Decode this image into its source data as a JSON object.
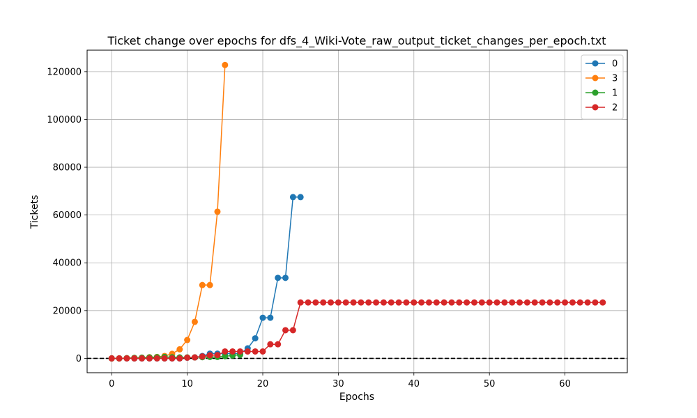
{
  "chart_data": {
    "type": "line",
    "title": "Ticket change over epochs for dfs_4_Wiki-Vote_raw_output_ticket_changes_per_epoch.txt",
    "xlabel": "Epochs",
    "ylabel": "Tickets",
    "xlim": [
      -3.25,
      68.25
    ],
    "ylim": [
      -6000,
      129000
    ],
    "x_ticks": [
      0,
      10,
      20,
      30,
      40,
      50,
      60
    ],
    "y_ticks": [
      0,
      20000,
      40000,
      60000,
      80000,
      100000,
      120000
    ],
    "grid": true,
    "zero_line": true,
    "legend_position": "top-right",
    "series": [
      {
        "name": "0",
        "color": "#1f77b4",
        "x": [
          0,
          1,
          2,
          3,
          4,
          5,
          6,
          7,
          8,
          9,
          10,
          11,
          12,
          13,
          14,
          15,
          16,
          17,
          18,
          19,
          20,
          21,
          22,
          23,
          24,
          25
        ],
        "y": [
          0,
          0,
          0,
          0,
          0,
          0,
          0,
          0,
          0,
          0,
          300,
          400,
          1000,
          2000,
          2000,
          2000,
          2000,
          2000,
          4200,
          8400,
          17000,
          17000,
          33700,
          33700,
          67500,
          67500
        ]
      },
      {
        "name": "3",
        "color": "#ff7f0e",
        "x": [
          0,
          1,
          2,
          3,
          4,
          5,
          6,
          7,
          8,
          9,
          10,
          11,
          12,
          13,
          14,
          15
        ],
        "y": [
          0,
          0,
          100,
          200,
          300,
          500,
          600,
          1000,
          1900,
          3800,
          7700,
          15300,
          30700,
          30700,
          61400,
          122800
        ]
      },
      {
        "name": "1",
        "color": "#2ca02c",
        "x": [
          0,
          1,
          2,
          3,
          4,
          5,
          6,
          7,
          8,
          9,
          10,
          11,
          12,
          13,
          14,
          15,
          16,
          17
        ],
        "y": [
          0,
          0,
          100,
          200,
          300,
          400,
          500,
          600,
          500,
          400,
          400,
          400,
          500,
          600,
          600,
          900,
          1200,
          1500
        ]
      },
      {
        "name": "2",
        "color": "#d62728",
        "x": [
          0,
          1,
          2,
          3,
          4,
          5,
          6,
          7,
          8,
          9,
          10,
          11,
          12,
          13,
          14,
          15,
          16,
          17,
          18,
          19,
          20,
          21,
          22,
          23,
          24,
          25,
          26,
          27,
          28,
          29,
          30,
          31,
          32,
          33,
          34,
          35,
          36,
          37,
          38,
          39,
          40,
          41,
          42,
          43,
          44,
          45,
          46,
          47,
          48,
          49,
          50,
          51,
          52,
          53,
          54,
          55,
          56,
          57,
          58,
          59,
          60,
          61,
          62,
          63,
          64,
          65
        ],
        "y": [
          0,
          0,
          0,
          0,
          0,
          0,
          0,
          0,
          0,
          0,
          300,
          400,
          800,
          1300,
          1400,
          2900,
          2900,
          2900,
          2900,
          2900,
          2900,
          5900,
          5900,
          11800,
          11800,
          23400,
          23400,
          23400,
          23400,
          23400,
          23400,
          23400,
          23400,
          23400,
          23400,
          23400,
          23400,
          23400,
          23400,
          23400,
          23400,
          23400,
          23400,
          23400,
          23400,
          23400,
          23400,
          23400,
          23400,
          23400,
          23400,
          23400,
          23400,
          23400,
          23400,
          23400,
          23400,
          23400,
          23400,
          23400,
          23400,
          23400,
          23400,
          23400,
          23400,
          23400
        ]
      }
    ]
  }
}
